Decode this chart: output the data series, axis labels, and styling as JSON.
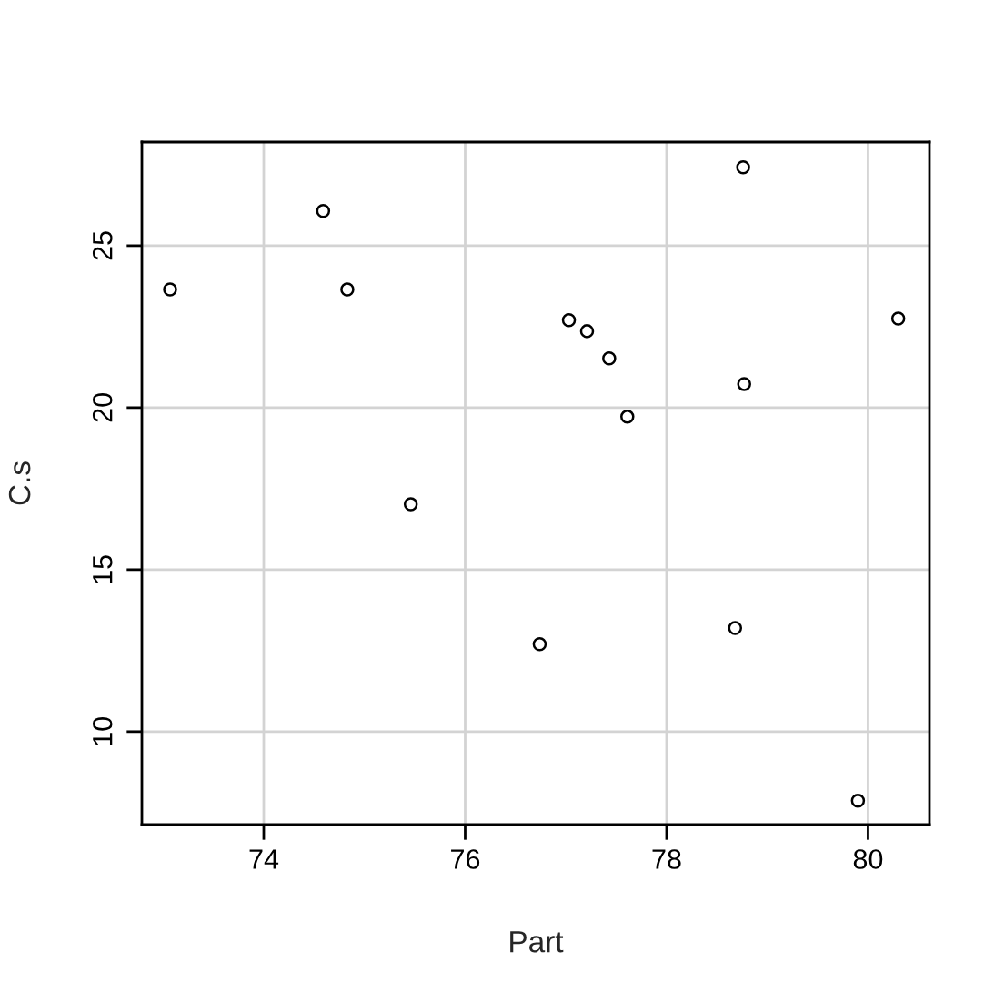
{
  "chart_data": {
    "type": "scatter",
    "xlabel": "Part",
    "ylabel": "C.s",
    "x": [
      73.07,
      74.59,
      74.83,
      75.46,
      76.74,
      77.03,
      77.21,
      77.43,
      77.61,
      78.68,
      78.76,
      78.77,
      79.9,
      80.3
    ],
    "values": [
      23.65,
      26.07,
      23.65,
      17.02,
      12.7,
      22.7,
      22.36,
      21.52,
      19.72,
      13.2,
      27.42,
      20.73,
      7.87,
      22.75
    ],
    "color": "#000000",
    "marker": "circle",
    "xlim": [
      72.79,
      80.61
    ],
    "ylim": [
      7.13,
      28.2
    ],
    "xticks": [
      74,
      76,
      78,
      80
    ],
    "yticks": [
      10,
      15,
      20,
      25
    ],
    "grid": true
  }
}
